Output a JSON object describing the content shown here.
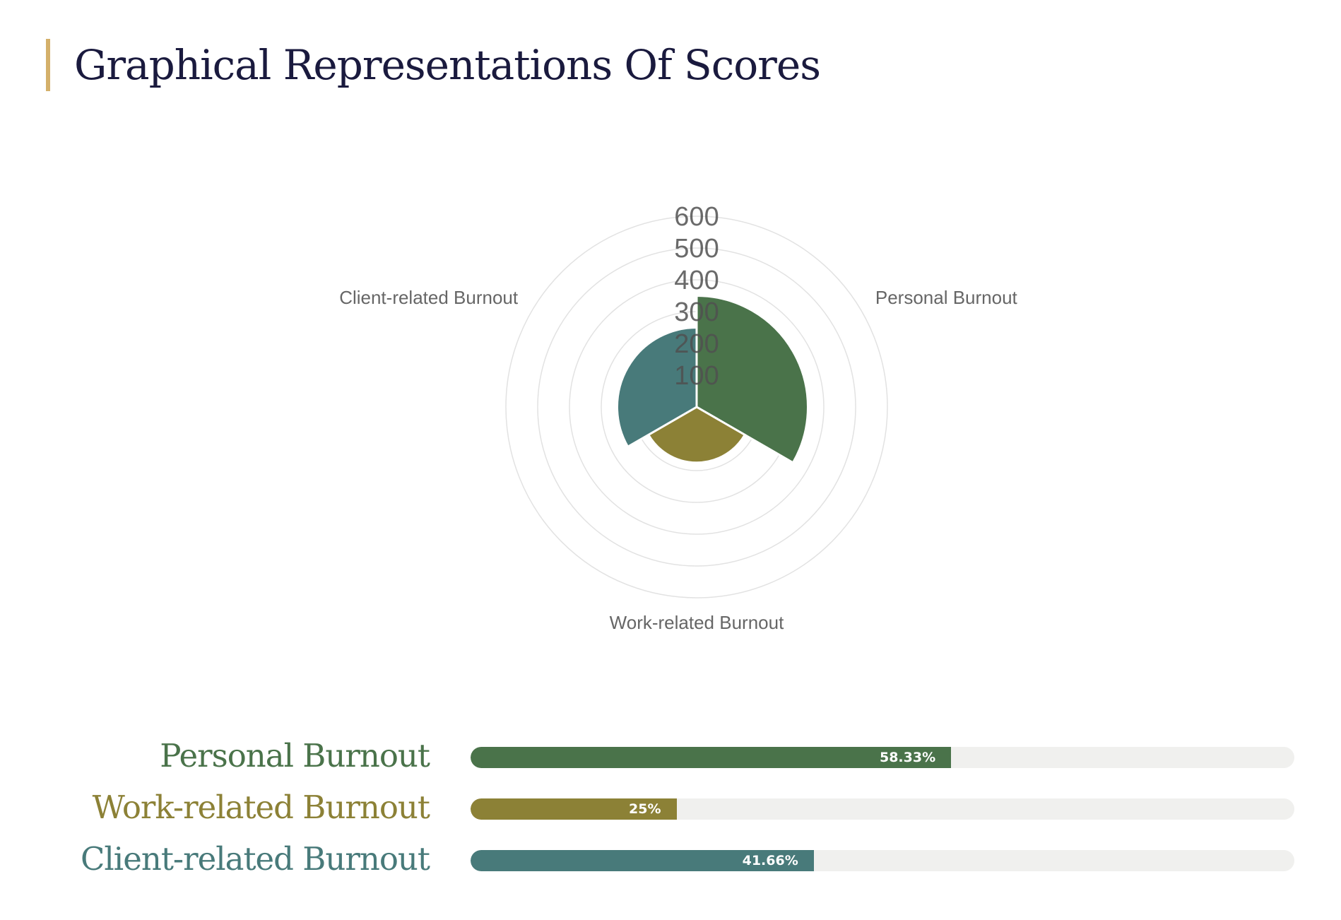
{
  "page": {
    "title": "Graphical Representations Of Scores"
  },
  "chart_data": [
    {
      "type": "polar-area",
      "categories": [
        "Personal Burnout",
        "Work-related Burnout",
        "Client-related Burnout"
      ],
      "values": [
        350,
        175,
        250
      ],
      "r_ticks": [
        100,
        200,
        300,
        400,
        500,
        600
      ],
      "rlim": [
        0,
        600
      ],
      "colors": [
        "#4a734a",
        "#8c8136",
        "#487a7a"
      ],
      "grid": true,
      "legend": "none"
    },
    {
      "type": "bar",
      "orientation": "horizontal",
      "categories": [
        "Personal Burnout",
        "Work-related Burnout",
        "Client-related Burnout"
      ],
      "values": [
        58.33,
        25,
        41.66
      ],
      "value_labels": [
        "58.33%",
        "25%",
        "41.66%"
      ],
      "xlim": [
        0,
        100
      ],
      "colors": [
        "#4a734a",
        "#8c8136",
        "#487a7a"
      ]
    }
  ]
}
